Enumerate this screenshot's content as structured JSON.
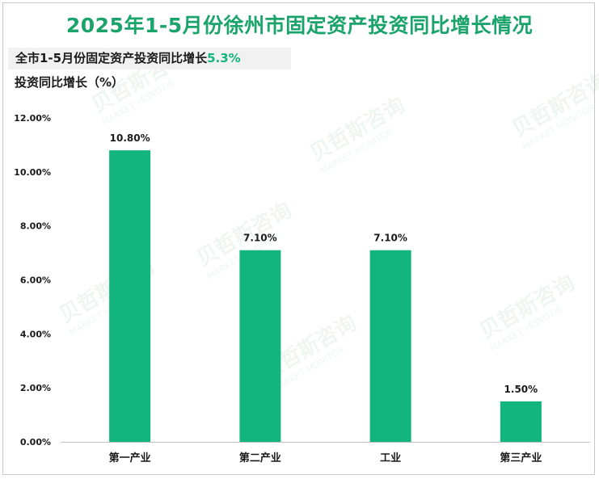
{
  "title": "2025年1-5月份徐州市固定资产投资同比增长情况",
  "subtitle": {
    "prefix": "全市1-5月份固定资产投资同比增长",
    "value": "5.3%"
  },
  "watermark": {
    "cn": "贝哲斯咨询",
    "en": "MARKET MONITOR"
  },
  "colors": {
    "title": "#1aa36a",
    "bar": "#12b57e",
    "highlight": "#12b57e",
    "axis": "#bfbfbf",
    "text": "#1a1a1a"
  },
  "chart_data": {
    "type": "bar",
    "ylabel": "投资同比增长（%）",
    "xlabel": "",
    "categories": [
      "第一产业",
      "第二产业",
      "工业",
      "第三产业"
    ],
    "values": [
      10.8,
      7.1,
      7.1,
      1.5
    ],
    "data_labels": [
      "10.80%",
      "7.10%",
      "7.10%",
      "1.50%"
    ],
    "ylim": [
      0,
      12
    ],
    "yticks": [
      0,
      2,
      4,
      6,
      8,
      10,
      12
    ],
    "ytick_labels": [
      "0.00%",
      "2.00%",
      "4.00%",
      "6.00%",
      "8.00%",
      "10.00%",
      "12.00%"
    ],
    "grid": false,
    "legend": "none"
  }
}
